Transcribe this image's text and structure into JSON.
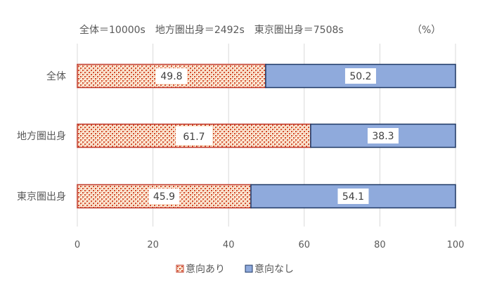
{
  "chart_data": {
    "type": "bar",
    "orientation": "horizontal",
    "stacked": "percent",
    "subtitle": "全体＝10000s　地方圏出身＝2492s　東京圏出身＝7508s",
    "unit_label": "（%）",
    "categories": [
      "全体",
      "地方圏出身",
      "東京圏出身"
    ],
    "series": [
      {
        "name": "意向あり",
        "values": [
          49.8,
          61.7,
          45.9
        ],
        "color": "#c0392b",
        "fill": "#f6d6b8",
        "pattern": "dotted-checker"
      },
      {
        "name": "意向なし",
        "values": [
          50.2,
          38.3,
          54.1
        ],
        "color": "#8faadc",
        "border": "#1f3864"
      }
    ],
    "data_labels": [
      [
        "49.8",
        "61.7",
        "45.9"
      ],
      [
        "50.2",
        "38.3",
        "54.1"
      ]
    ],
    "xlim": [
      0,
      100
    ],
    "x_ticks": [
      "0",
      "20",
      "40",
      "60",
      "80",
      "100"
    ],
    "gridlines": "vertical",
    "legend": "bottom-center"
  }
}
